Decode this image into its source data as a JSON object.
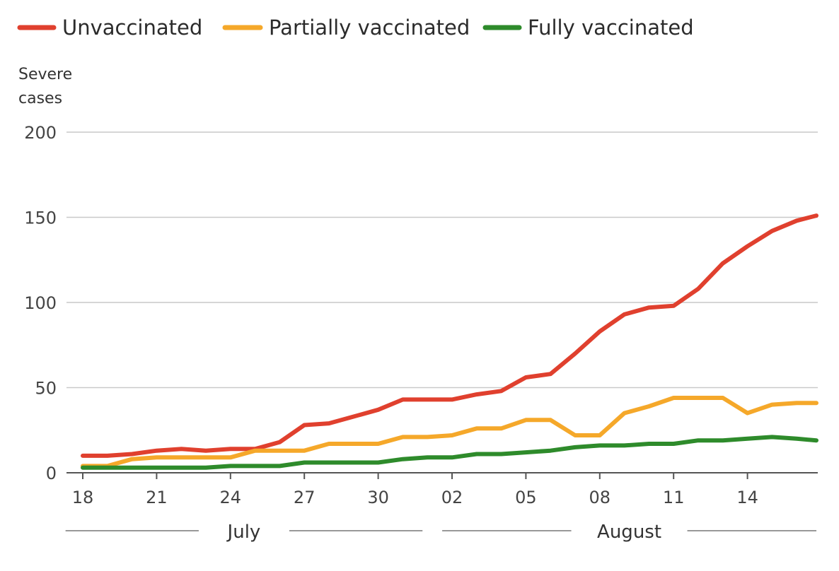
{
  "chart_data": {
    "type": "line",
    "title": "",
    "xlabel": "",
    "ylabel": "Severe cases",
    "ylabel_lines": [
      "Severe",
      "cases"
    ],
    "ylim": [
      0,
      200
    ],
    "y_ticks": [
      0,
      50,
      100,
      150,
      200
    ],
    "x_tick_labels": [
      "18",
      "21",
      "24",
      "27",
      "30",
      "02",
      "05",
      "08",
      "11",
      "14"
    ],
    "x_tick_days": [
      0,
      3,
      6,
      9,
      12,
      15,
      18,
      21,
      24,
      27
    ],
    "x_range_days": [
      0,
      29.8
    ],
    "months": [
      {
        "label": "July",
        "start_day": -0.7,
        "end_day": 13.8
      },
      {
        "label": "August",
        "start_day": 14.6,
        "end_day": 29.8
      }
    ],
    "x_days": [
      0,
      1,
      2,
      3,
      4,
      5,
      6,
      7,
      8,
      9,
      10,
      11,
      12,
      13,
      14,
      15,
      16,
      17,
      18,
      19,
      20,
      21,
      22,
      23,
      24,
      25,
      26,
      27,
      28,
      29,
      29.8
    ],
    "legend_position": "top-left",
    "series": [
      {
        "name": "Unvaccinated",
        "color": "#e0402e",
        "values": [
          10,
          10,
          11,
          13,
          14,
          13,
          14,
          14,
          18,
          28,
          29,
          33,
          37,
          43,
          43,
          43,
          46,
          48,
          56,
          58,
          70,
          83,
          93,
          97,
          98,
          108,
          123,
          133,
          142,
          148,
          151
        ]
      },
      {
        "name": "Partially vaccinated",
        "color": "#f5a82a",
        "values": [
          4,
          4,
          8,
          9,
          9,
          9,
          9,
          13,
          13,
          13,
          17,
          17,
          17,
          21,
          21,
          22,
          26,
          26,
          31,
          31,
          22,
          22,
          35,
          39,
          44,
          44,
          44,
          35,
          40,
          41,
          41
        ]
      },
      {
        "name": "Fully vaccinated",
        "color": "#2e8b2b",
        "values": [
          3,
          3,
          3,
          3,
          3,
          3,
          4,
          4,
          4,
          6,
          6,
          6,
          6,
          8,
          9,
          9,
          11,
          11,
          12,
          13,
          15,
          16,
          16,
          17,
          17,
          19,
          19,
          20,
          21,
          20,
          19
        ]
      }
    ]
  }
}
